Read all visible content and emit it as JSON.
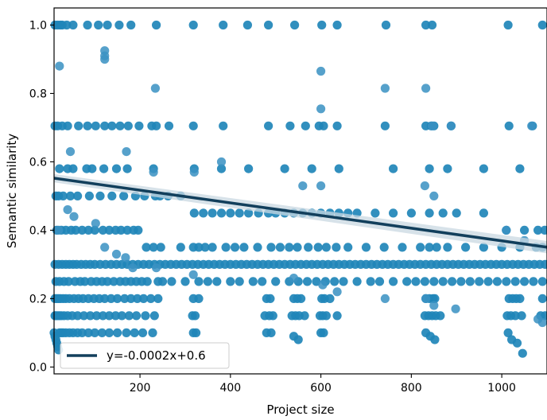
{
  "chart_data": {
    "type": "scatter",
    "title": "",
    "xlabel": "Project size",
    "ylabel": "Semantic similarity",
    "xlim": [
      10,
      1100
    ],
    "ylim": [
      -0.02,
      1.05
    ],
    "xticks": [
      "200",
      "400",
      "600",
      "800",
      "1000"
    ],
    "yticks": [
      "0.0",
      "0.2",
      "0.4",
      "0.6",
      "0.8",
      "1.0"
    ],
    "grid": false,
    "legend_position": "lower-left",
    "colors": {
      "points": "#1f85b8",
      "trend_line": "#123f5c",
      "confidence_band": "#c9d8e2",
      "axes": "#000000"
    },
    "trend_line": {
      "label": "y=-0.0002x+0.6",
      "slope": -0.000185,
      "intercept": 0.554,
      "ci_halfwidth_left": 0.012,
      "ci_halfwidth_right": 0.018
    },
    "series": [
      {
        "name": "",
        "x": [
          12,
          18,
          24,
          28,
          38,
          52,
          84,
          108,
          128,
          154,
          180,
          236,
          318,
          384,
          438,
          484,
          542,
          602,
          636,
          744,
          832,
          846,
          1014,
          1090,
          12,
          18,
          28,
          40,
          64,
          84,
          102,
          122,
          138,
          156,
          174,
          198,
          226,
          236,
          264,
          318,
          384,
          484,
          532,
          566,
          596,
          606,
          636,
          742,
          832,
          844,
          850,
          888,
          1016,
          1068,
          22,
          40,
          52,
          82,
          94,
          120,
          148,
          172,
          230,
          320,
          380,
          440,
          520,
          580,
          640,
          760,
          840,
          880,
          960,
          1040,
          14,
          20,
          30,
          46,
          62,
          88,
          112,
          138,
          164,
          190,
          210,
          234,
          244,
          262,
          290,
          320,
          340,
          360,
          380,
          400,
          420,
          440,
          462,
          484,
          500,
          520,
          540,
          560,
          580,
          600,
          620,
          640,
          660,
          680,
          720,
          760,
          800,
          840,
          870,
          900,
          960,
          1010,
          1050,
          1080,
          1095,
          16,
          26,
          36,
          48,
          58,
          72,
          86,
          100,
          118,
          132,
          146,
          158,
          172,
          186,
          196,
          214,
          230,
          246,
          290,
          318,
          330,
          344,
          360,
          390,
          410,
          430,
          460,
          490,
          510,
          530,
          548,
          572,
          594,
          612,
          634,
          660,
          700,
          740,
          780,
          820,
          840,
          856,
          880,
          920,
          960,
          1000,
          1040,
          1076,
          1090,
          12,
          20,
          28,
          36,
          44,
          52,
          60,
          70,
          80,
          90,
          100,
          112,
          124,
          136,
          148,
          160,
          172,
          184,
          196,
          208,
          220,
          232,
          244,
          256,
          268,
          280,
          292,
          304,
          316,
          328,
          340,
          352,
          364,
          376,
          388,
          400,
          412,
          424,
          436,
          448,
          460,
          472,
          484,
          496,
          508,
          520,
          532,
          544,
          556,
          568,
          580,
          592,
          604,
          616,
          628,
          640,
          652,
          664,
          676,
          688,
          700,
          712,
          724,
          736,
          748,
          760,
          772,
          784,
          796,
          808,
          820,
          832,
          844,
          856,
          868,
          880,
          892,
          904,
          916,
          928,
          940,
          952,
          964,
          976,
          988,
          1000,
          1012,
          1024,
          1036,
          1048,
          1060,
          1072,
          1084,
          1096,
          14,
          22,
          32,
          42,
          56,
          68,
          78,
          92,
          104,
          116,
          128,
          142,
          156,
          168,
          180,
          192,
          204,
          216,
          240,
          250,
          270,
          300,
          330,
          350,
          370,
          400,
          420,
          450,
          470,
          500,
          530,
          550,
          570,
          590,
          610,
          630,
          650,
          680,
          710,
          730,
          760,
          790,
          810,
          830,
          850,
          870,
          890,
          910,
          930,
          950,
          970,
          990,
          1010,
          1030,
          1050,
          1070,
          1090,
          12,
          16,
          20,
          24,
          30,
          36,
          44,
          54,
          64,
          74,
          86,
          98,
          110,
          122,
          136,
          150,
          166,
          180,
          194,
          208,
          224,
          240,
          318,
          330,
          480,
          488,
          540,
          548,
          556,
          602,
          608,
          620,
          832,
          840,
          848,
          852,
          1016,
          1024,
          1032,
          1040,
          1090,
          12,
          14,
          18,
          22,
          26,
          32,
          40,
          50,
          62,
          76,
          90,
          104,
          118,
          132,
          146,
          160,
          176,
          192,
          212,
          232,
          316,
          322,
          476,
          486,
          494,
          536,
          544,
          552,
          564,
          598,
          604,
          612,
          636,
          830,
          838,
          846,
          854,
          864,
          1012,
          1020,
          1030,
          1044,
          1086,
          1096,
          10,
          12,
          14,
          16,
          18,
          20,
          22,
          26,
          30,
          36,
          44,
          52,
          62,
          72,
          86,
          100,
          116,
          132,
          150,
          170,
          188,
          206,
          228,
          318,
          324,
          480,
          490,
          540,
          550,
          600,
          606,
          832,
          842,
          852,
          1014,
          1022,
          1034,
          1046
        ],
        "y": [
          1.0,
          1.0,
          1.0,
          1.0,
          1.0,
          1.0,
          1.0,
          1.0,
          1.0,
          1.0,
          1.0,
          1.0,
          1.0,
          1.0,
          1.0,
          1.0,
          1.0,
          1.0,
          1.0,
          1.0,
          1.0,
          1.0,
          1.0,
          1.0,
          0.705,
          0.705,
          0.705,
          0.705,
          0.705,
          0.705,
          0.705,
          0.705,
          0.705,
          0.705,
          0.705,
          0.705,
          0.705,
          0.705,
          0.705,
          0.705,
          0.705,
          0.705,
          0.705,
          0.705,
          0.705,
          0.705,
          0.705,
          0.705,
          0.705,
          0.705,
          0.705,
          0.705,
          0.705,
          0.705,
          0.58,
          0.58,
          0.58,
          0.58,
          0.58,
          0.58,
          0.58,
          0.58,
          0.58,
          0.58,
          0.58,
          0.58,
          0.58,
          0.58,
          0.58,
          0.58,
          0.58,
          0.58,
          0.58,
          0.58,
          0.5,
          0.5,
          0.5,
          0.5,
          0.5,
          0.5,
          0.5,
          0.5,
          0.5,
          0.5,
          0.5,
          0.5,
          0.5,
          0.5,
          0.5,
          0.45,
          0.45,
          0.45,
          0.45,
          0.45,
          0.45,
          0.45,
          0.45,
          0.45,
          0.45,
          0.45,
          0.45,
          0.45,
          0.45,
          0.45,
          0.45,
          0.45,
          0.45,
          0.45,
          0.45,
          0.45,
          0.45,
          0.45,
          0.45,
          0.45,
          0.45,
          0.4,
          0.4,
          0.4,
          0.4,
          0.4,
          0.4,
          0.4,
          0.4,
          0.4,
          0.4,
          0.4,
          0.4,
          0.4,
          0.4,
          0.4,
          0.4,
          0.4,
          0.4,
          0.4,
          0.35,
          0.35,
          0.35,
          0.35,
          0.35,
          0.35,
          0.35,
          0.35,
          0.35,
          0.35,
          0.35,
          0.35,
          0.35,
          0.35,
          0.35,
          0.35,
          0.35,
          0.35,
          0.35,
          0.35,
          0.35,
          0.35,
          0.35,
          0.35,
          0.35,
          0.35,
          0.35,
          0.35,
          0.35,
          0.35,
          0.35,
          0.35,
          0.35,
          0.35,
          0.3,
          0.3,
          0.3,
          0.3,
          0.3,
          0.3,
          0.3,
          0.3,
          0.3,
          0.3,
          0.3,
          0.3,
          0.3,
          0.3,
          0.3,
          0.3,
          0.3,
          0.3,
          0.3,
          0.3,
          0.3,
          0.3,
          0.3,
          0.3,
          0.3,
          0.3,
          0.3,
          0.3,
          0.3,
          0.3,
          0.3,
          0.3,
          0.3,
          0.3,
          0.3,
          0.3,
          0.3,
          0.3,
          0.3,
          0.3,
          0.3,
          0.3,
          0.3,
          0.3,
          0.3,
          0.3,
          0.3,
          0.3,
          0.3,
          0.3,
          0.3,
          0.3,
          0.3,
          0.3,
          0.3,
          0.3,
          0.3,
          0.3,
          0.3,
          0.3,
          0.3,
          0.3,
          0.3,
          0.3,
          0.3,
          0.3,
          0.3,
          0.3,
          0.3,
          0.3,
          0.3,
          0.3,
          0.3,
          0.3,
          0.3,
          0.3,
          0.3,
          0.3,
          0.3,
          0.3,
          0.3,
          0.3,
          0.3,
          0.3,
          0.3,
          0.3,
          0.3,
          0.3,
          0.3,
          0.3,
          0.3,
          0.3,
          0.3,
          0.3,
          0.25,
          0.25,
          0.25,
          0.25,
          0.25,
          0.25,
          0.25,
          0.25,
          0.25,
          0.25,
          0.25,
          0.25,
          0.25,
          0.25,
          0.25,
          0.25,
          0.25,
          0.25,
          0.25,
          0.25,
          0.25,
          0.25,
          0.25,
          0.25,
          0.25,
          0.25,
          0.25,
          0.25,
          0.25,
          0.25,
          0.25,
          0.25,
          0.25,
          0.25,
          0.25,
          0.25,
          0.25,
          0.25,
          0.25,
          0.25,
          0.25,
          0.25,
          0.25,
          0.25,
          0.25,
          0.25,
          0.25,
          0.25,
          0.25,
          0.25,
          0.25,
          0.25,
          0.25,
          0.25,
          0.25,
          0.25,
          0.25,
          0.2,
          0.2,
          0.2,
          0.2,
          0.2,
          0.2,
          0.2,
          0.2,
          0.2,
          0.2,
          0.2,
          0.2,
          0.2,
          0.2,
          0.2,
          0.2,
          0.2,
          0.2,
          0.2,
          0.2,
          0.2,
          0.2,
          0.2,
          0.2,
          0.2,
          0.2,
          0.2,
          0.2,
          0.2,
          0.2,
          0.2,
          0.2,
          0.2,
          0.2,
          0.2,
          0.2,
          0.2,
          0.2,
          0.2,
          0.2,
          0.2,
          0.15,
          0.15,
          0.15,
          0.15,
          0.15,
          0.15,
          0.15,
          0.15,
          0.15,
          0.15,
          0.15,
          0.15,
          0.15,
          0.15,
          0.15,
          0.15,
          0.15,
          0.15,
          0.15,
          0.15,
          0.15,
          0.15,
          0.15,
          0.15,
          0.15,
          0.15,
          0.15,
          0.15,
          0.15,
          0.15,
          0.15,
          0.15,
          0.15,
          0.15,
          0.15,
          0.15,
          0.15,
          0.15,
          0.15,
          0.15,
          0.15,
          0.15,
          0.15,
          0.15,
          0.1,
          0.09,
          0.08,
          0.07,
          0.06,
          0.05,
          0.1,
          0.1,
          0.1,
          0.1,
          0.1,
          0.1,
          0.1,
          0.1,
          0.1,
          0.1,
          0.1,
          0.1,
          0.1,
          0.1,
          0.1,
          0.1,
          0.1,
          0.1,
          0.1,
          0.1,
          0.1,
          0.09,
          0.08,
          0.1,
          0.1,
          0.1,
          0.09,
          0.08,
          0.1,
          0.08,
          0.07,
          0.04
        ]
      },
      {
        "name": "",
        "x": [
          22,
          122,
          122,
          122,
          234,
          600,
          600,
          742,
          832,
          846,
          888,
          1066,
          46,
          170,
          230,
          320,
          380,
          560,
          600,
          830,
          850,
          1010,
          1050,
          20,
          40,
          54,
          102,
          122,
          148,
          168,
          184,
          236,
          318,
          540,
          604,
          636,
          742,
          832,
          850,
          898,
          1080,
          1090
        ],
        "y": [
          0.88,
          0.925,
          0.91,
          0.9,
          0.815,
          0.865,
          0.755,
          0.815,
          0.815,
          0.705,
          0.705,
          0.705,
          0.63,
          0.63,
          0.57,
          0.57,
          0.6,
          0.53,
          0.53,
          0.53,
          0.5,
          0.4,
          0.37,
          0.4,
          0.46,
          0.44,
          0.42,
          0.35,
          0.33,
          0.32,
          0.29,
          0.29,
          0.27,
          0.26,
          0.24,
          0.22,
          0.2,
          0.2,
          0.18,
          0.17,
          0.14,
          0.13
        ]
      }
    ]
  }
}
